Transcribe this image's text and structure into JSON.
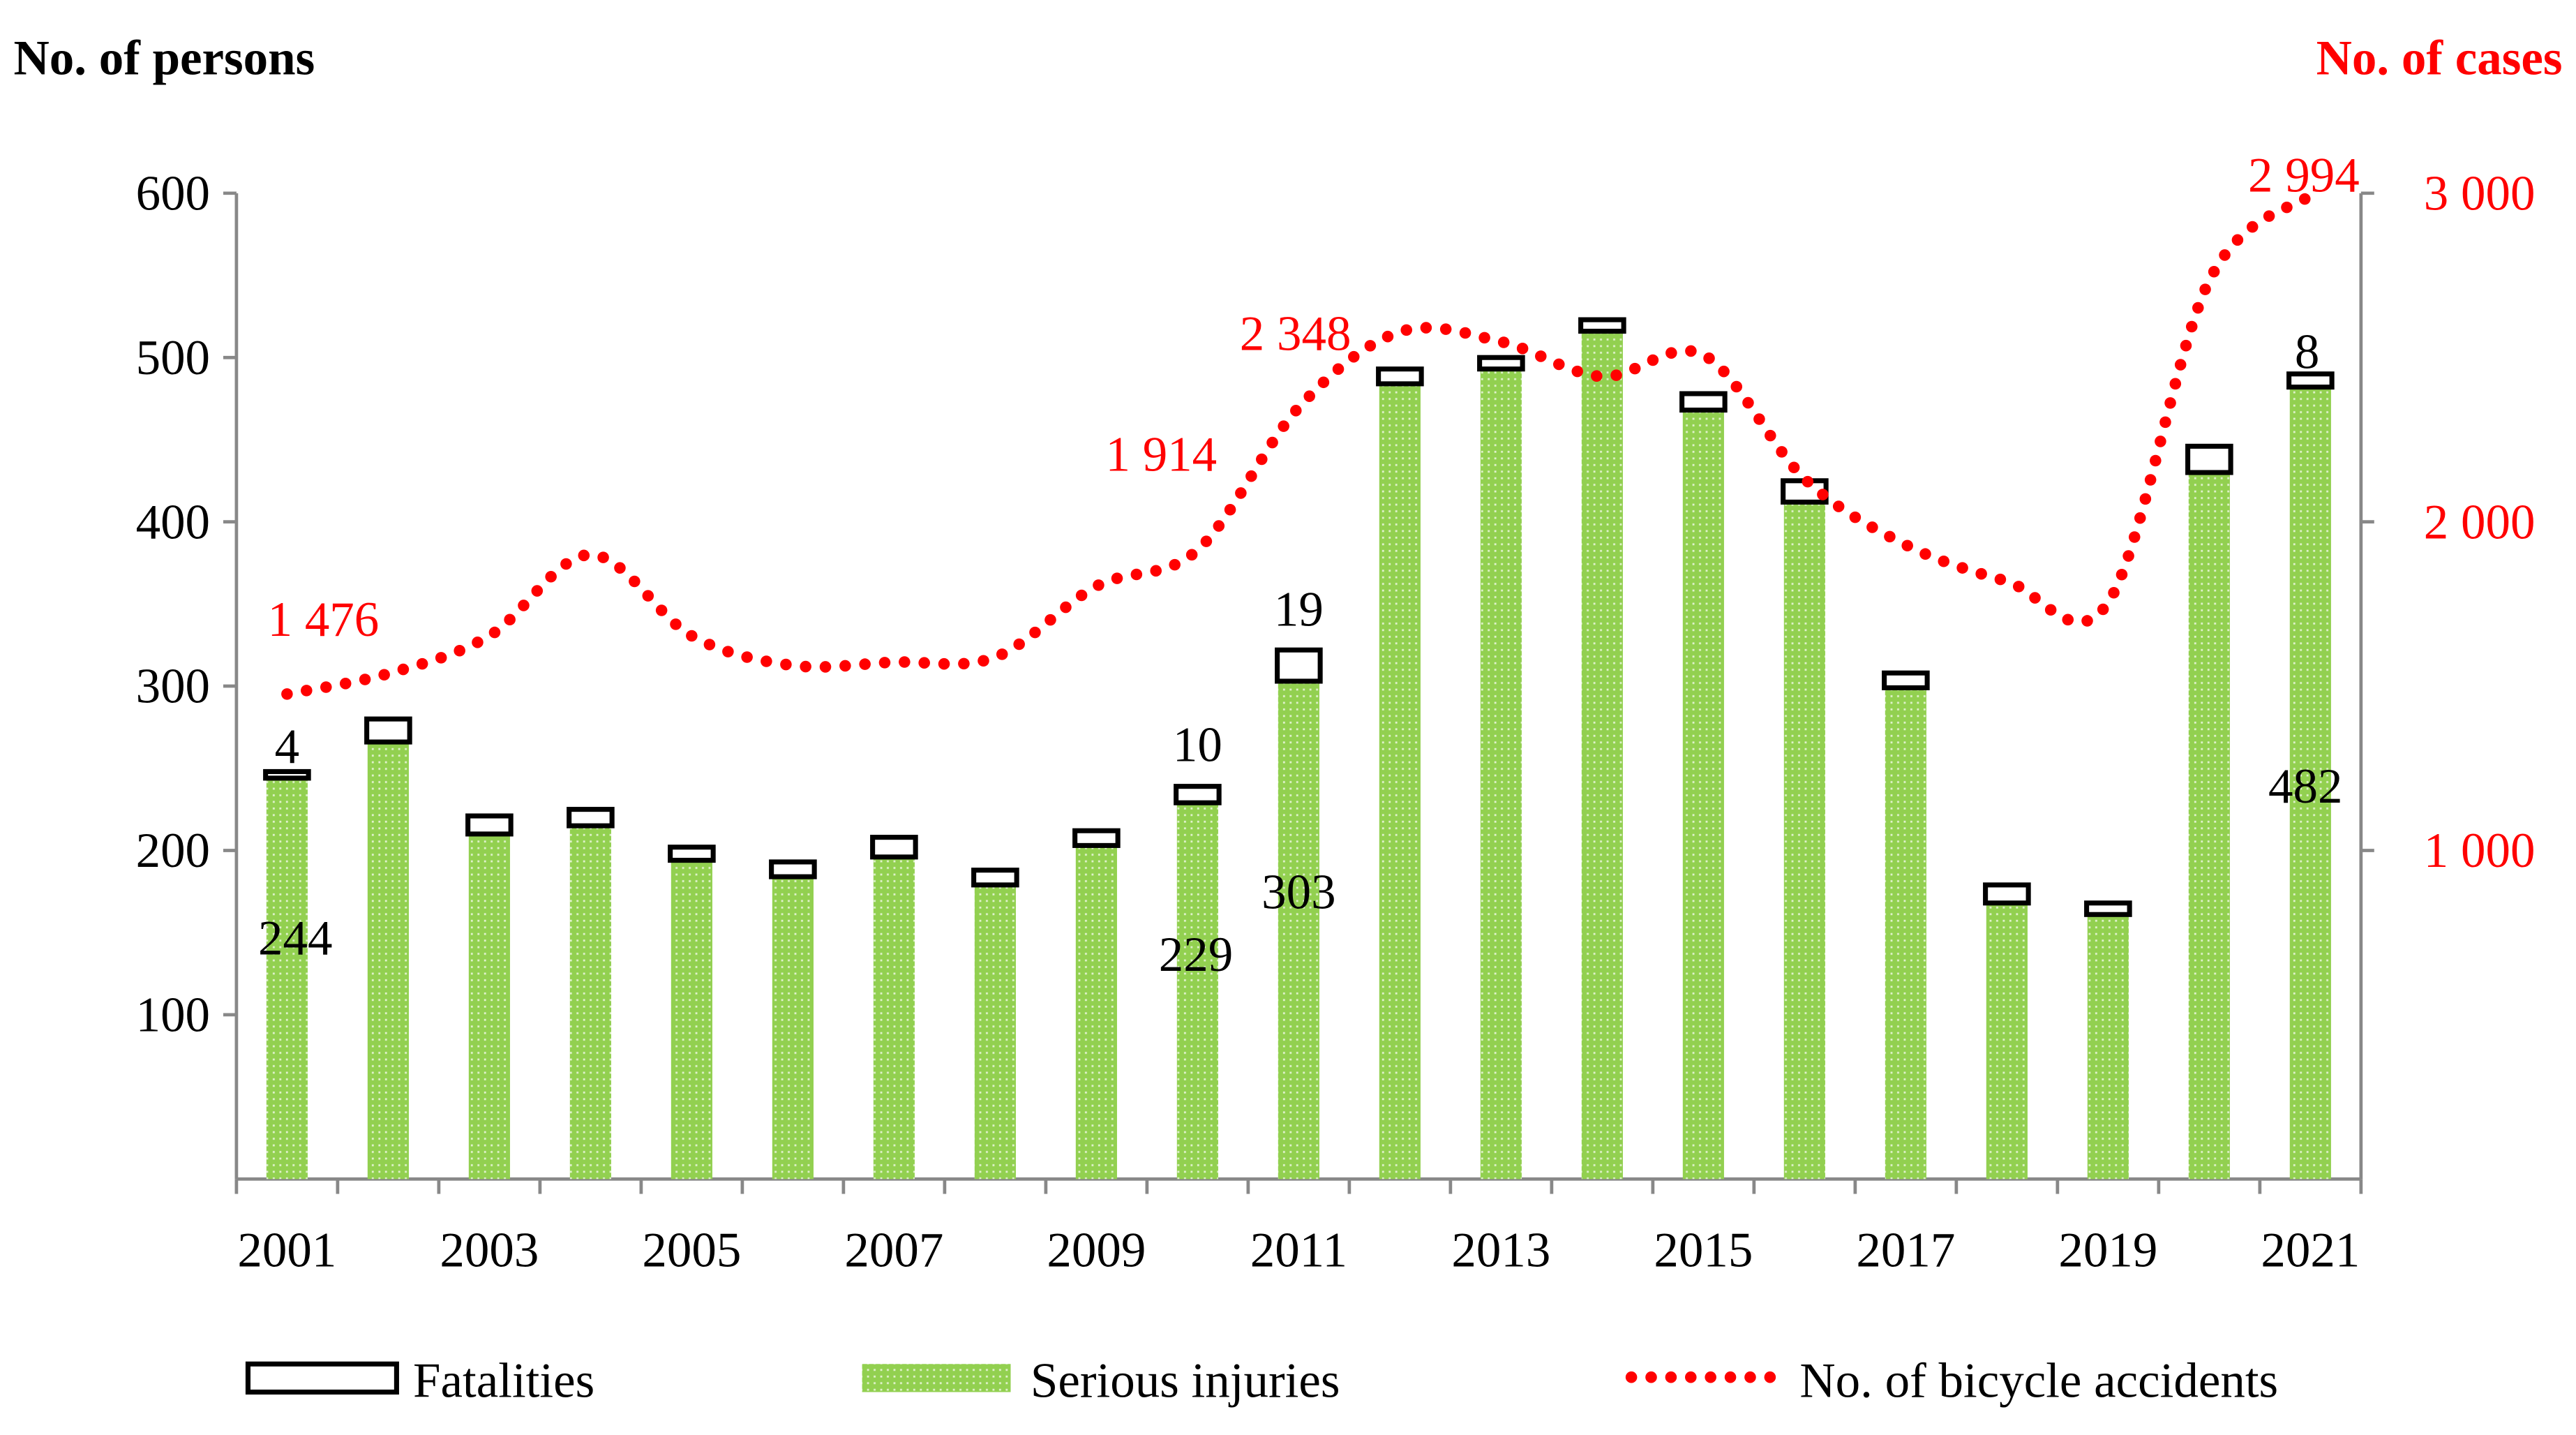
{
  "chart_data": {
    "type": "bar+line",
    "left_axis_title": "No. of persons",
    "right_axis_title": "No. of cases",
    "categories": [
      2001,
      2002,
      2003,
      2004,
      2005,
      2006,
      2007,
      2008,
      2009,
      2010,
      2011,
      2012,
      2013,
      2014,
      2015,
      2016,
      2017,
      2018,
      2019,
      2020,
      2021
    ],
    "x_tick_labels": [
      "2001",
      "2003",
      "2005",
      "2007",
      "2009",
      "2011",
      "2013",
      "2015",
      "2017",
      "2019",
      "2021"
    ],
    "left_ylim": [
      0,
      600
    ],
    "left_ticks": [
      "100",
      "200",
      "300",
      "400",
      "500",
      "600"
    ],
    "right_ylim": [
      0,
      3000
    ],
    "right_ticks": [
      "1 000",
      "2 000",
      "3 000"
    ],
    "series": [
      {
        "name": "Serious injuries",
        "type": "stacked-bar",
        "axis": "left",
        "color": "#92d050",
        "values": [
          244,
          266,
          210,
          215,
          194,
          184,
          196,
          179,
          203,
          229,
          303,
          484,
          493,
          516,
          468,
          412,
          299,
          168,
          161,
          430,
          482
        ]
      },
      {
        "name": "Fatalities",
        "type": "stacked-bar",
        "axis": "left",
        "color": "#ffffff",
        "values": [
          4,
          14,
          11,
          10,
          8,
          9,
          12,
          9,
          9,
          10,
          19,
          9,
          7,
          7,
          10,
          13,
          9,
          11,
          7,
          16,
          8
        ]
      },
      {
        "name": "No. of bicycle accidents",
        "type": "line-dotted",
        "axis": "right",
        "color": "#ff0000",
        "values": [
          1476,
          1538,
          1653,
          1900,
          1653,
          1563,
          1573,
          1588,
          1804,
          1914,
          2348,
          2578,
          2548,
          2442,
          2508,
          2131,
          1930,
          1819,
          1754,
          2734,
          2994
        ]
      }
    ],
    "data_labels": [
      {
        "series": "Serious injuries",
        "year": 2001,
        "text": "244"
      },
      {
        "series": "Fatalities",
        "year": 2001,
        "text": "4"
      },
      {
        "series": "Serious injuries",
        "year": 2010,
        "text": "229"
      },
      {
        "series": "Fatalities",
        "year": 2010,
        "text": "10"
      },
      {
        "series": "Serious injuries",
        "year": 2011,
        "text": "303"
      },
      {
        "series": "Fatalities",
        "year": 2011,
        "text": "19"
      },
      {
        "series": "Serious injuries",
        "year": 2021,
        "text": "482"
      },
      {
        "series": "Fatalities",
        "year": 2021,
        "text": "8"
      },
      {
        "series": "No. of bicycle accidents",
        "year": 2001,
        "text": "1 476"
      },
      {
        "series": "No. of bicycle accidents",
        "year": 2010,
        "text": "1 914"
      },
      {
        "series": "No. of bicycle accidents",
        "year": 2011,
        "text": "2 348"
      },
      {
        "series": "No. of bicycle accidents",
        "year": 2021,
        "text": "2 994"
      }
    ],
    "legend": {
      "position": "bottom",
      "items": [
        "Fatalities",
        "Serious injuries",
        "No. of bicycle accidents"
      ]
    },
    "grid": false
  }
}
